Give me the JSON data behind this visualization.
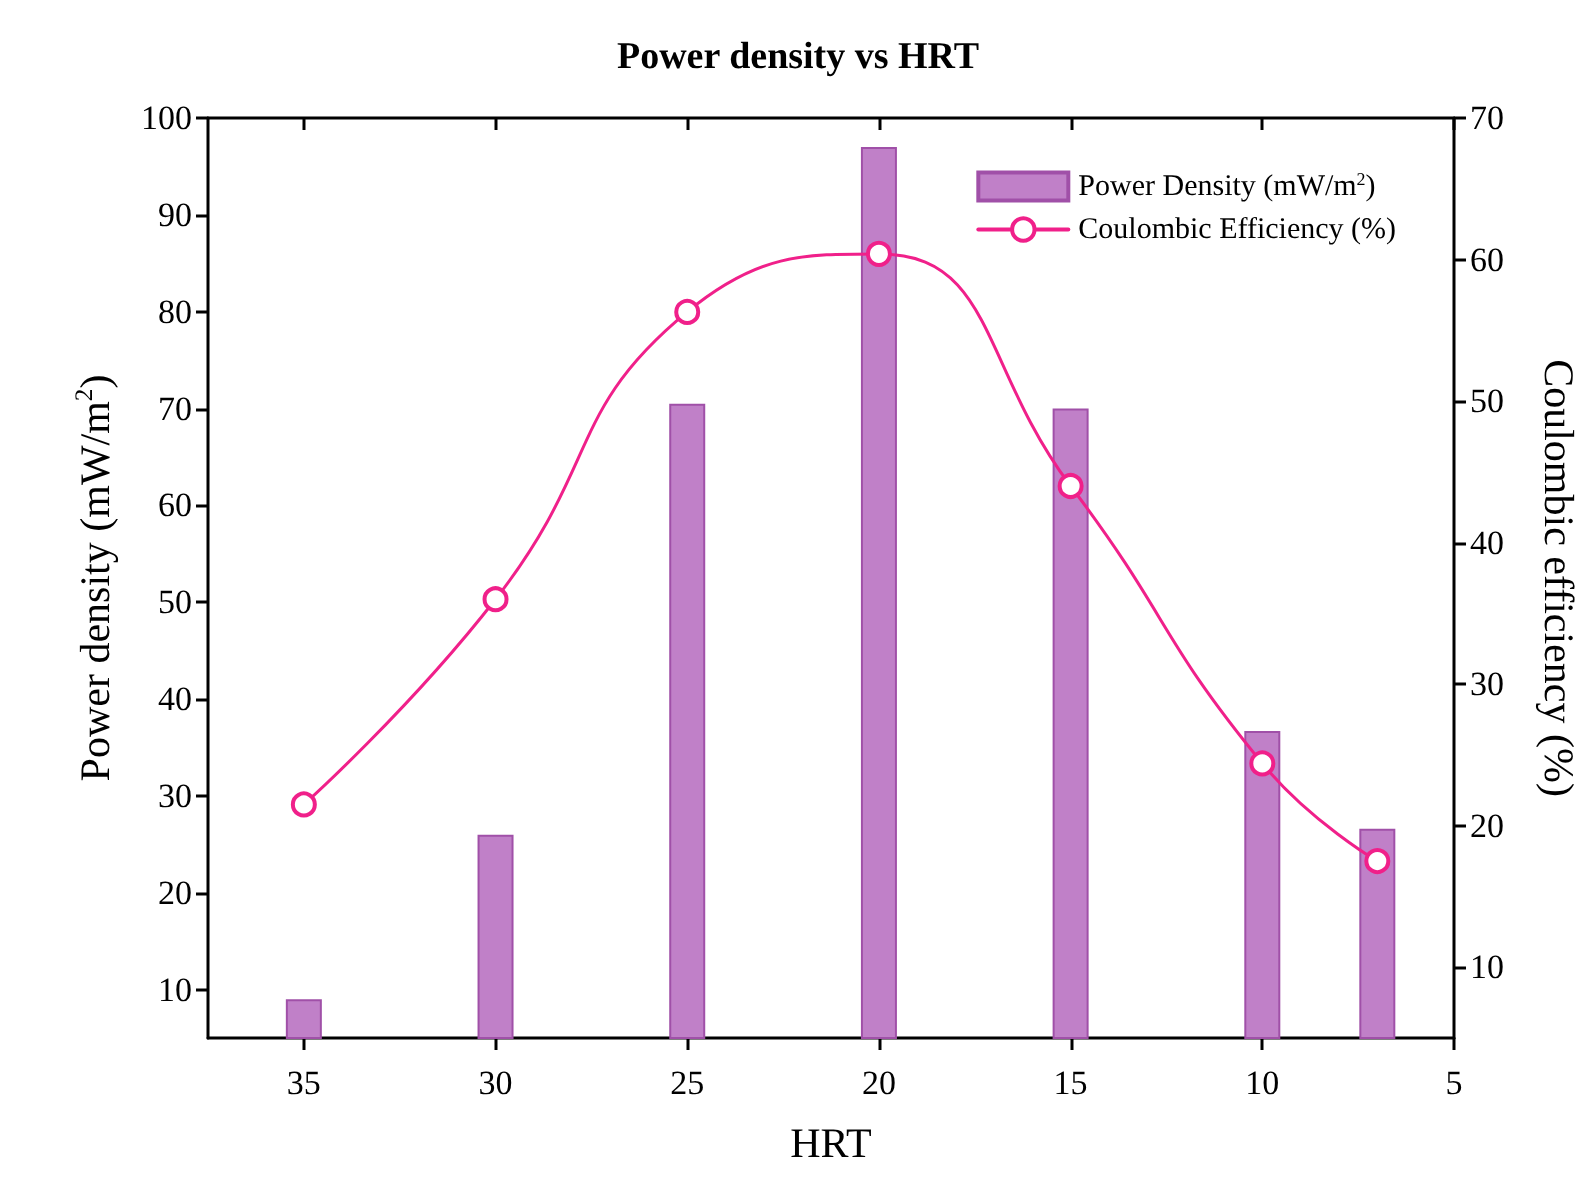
{
  "chart_data": {
    "type": "bar",
    "title": "Power density vs HRT",
    "xlabel": "HRT",
    "ylabel": "Power density (mW/m$^{2}$)",
    "y2label": "Coulombic efficiency (%)",
    "x": [
      35,
      30,
      25,
      20,
      15,
      10,
      7
    ],
    "xlim": [
      37.5,
      5
    ],
    "xticks": [
      35,
      30,
      25,
      20,
      15,
      10,
      5
    ],
    "ylim": [
      5,
      100
    ],
    "yticks": [
      10,
      20,
      30,
      40,
      50,
      60,
      70,
      80,
      90,
      100
    ],
    "y2lim": [
      5,
      70
    ],
    "y2ticks": [
      10,
      20,
      30,
      40,
      50,
      60,
      70
    ],
    "legend": "top right",
    "grid": false,
    "series": [
      {
        "name": "Power Density (mW/m$^{2}$)",
        "color": "#c080c8",
        "values": [
          9,
          26,
          70.5,
          97,
          70,
          36.7,
          26.6
        ]
      },
      {
        "name": "Coulombic Efficiency (%)",
        "type": "line",
        "axis": "y2",
        "color": "#f0208a",
        "marker": "circle",
        "line_style": "solid",
        "values": [
          21.5,
          36,
          56.3,
          60.4,
          44,
          24.4,
          17.5
        ]
      }
    ]
  }
}
